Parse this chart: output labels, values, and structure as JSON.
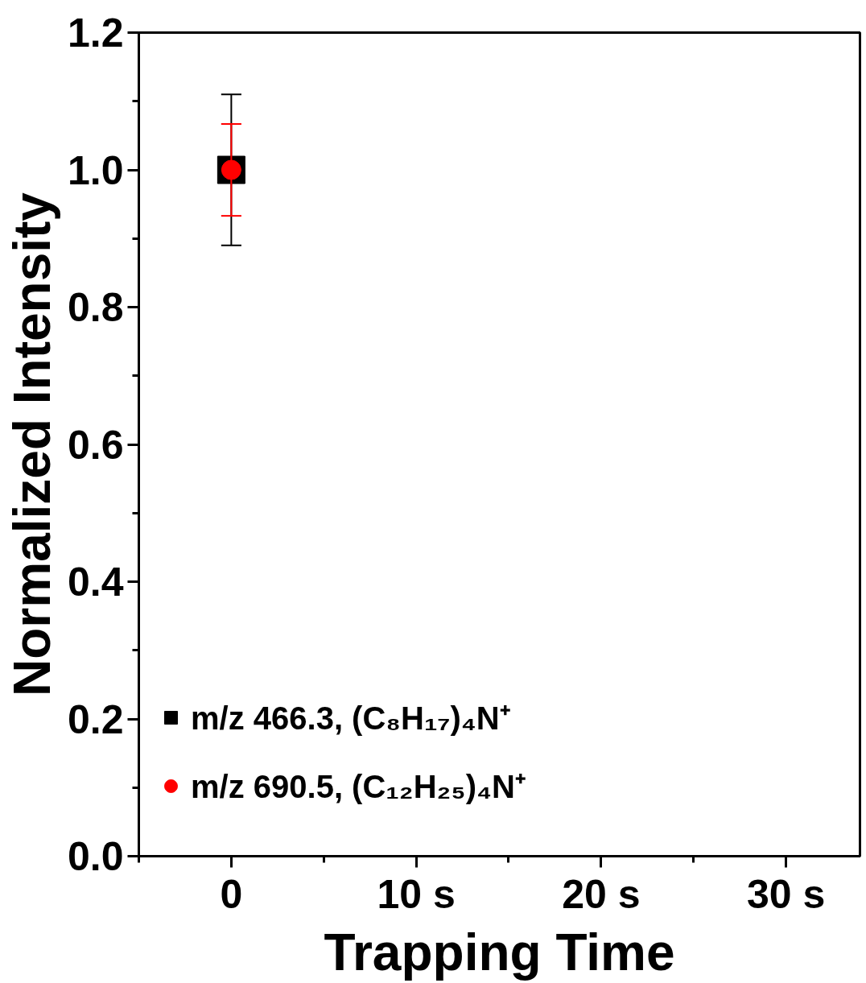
{
  "chart_data": {
    "type": "scatter",
    "xlabel": "Trapping Time",
    "ylabel": "Normalized Intensity",
    "x": [
      0
    ],
    "series": [
      {
        "name": "m/z 466.3, (C₈H₁₇)₄N⁺",
        "color": "#000000",
        "marker": "square",
        "values": [
          1.0
        ],
        "errors": [
          0.11
        ]
      },
      {
        "name": "m/z 690.5, (C₁₂H₂₅)₄N⁺",
        "color": "#ff0000",
        "marker": "circle",
        "values": [
          1.0
        ],
        "errors": [
          0.067
        ]
      }
    ],
    "xlim": [
      -5,
      34
    ],
    "ylim": [
      0,
      1.2
    ],
    "xticks": [
      {
        "value": -5,
        "label": null
      },
      {
        "value": 0,
        "label": "0"
      },
      {
        "value": 5,
        "label": null
      },
      {
        "value": 10,
        "label": "10 s"
      },
      {
        "value": 15,
        "label": null
      },
      {
        "value": 20,
        "label": "20 s"
      },
      {
        "value": 25,
        "label": null
      },
      {
        "value": 30,
        "label": "30 s"
      }
    ],
    "yticks": [
      {
        "value": 0,
        "label": "0.0"
      },
      {
        "value": 0.1,
        "label": null
      },
      {
        "value": 0.2,
        "label": "0.2"
      },
      {
        "value": 0.3,
        "label": null
      },
      {
        "value": 0.4,
        "label": "0.4"
      },
      {
        "value": 0.5,
        "label": null
      },
      {
        "value": 0.6,
        "label": "0.6"
      },
      {
        "value": 0.7,
        "label": null
      },
      {
        "value": 0.8,
        "label": "0.8"
      },
      {
        "value": 0.9,
        "label": null
      },
      {
        "value": 1.0,
        "label": "1.0"
      },
      {
        "value": 1.1,
        "label": null
      },
      {
        "value": 1.2,
        "label": "1.2"
      }
    ],
    "grid": false,
    "legend": "bottom left"
  }
}
